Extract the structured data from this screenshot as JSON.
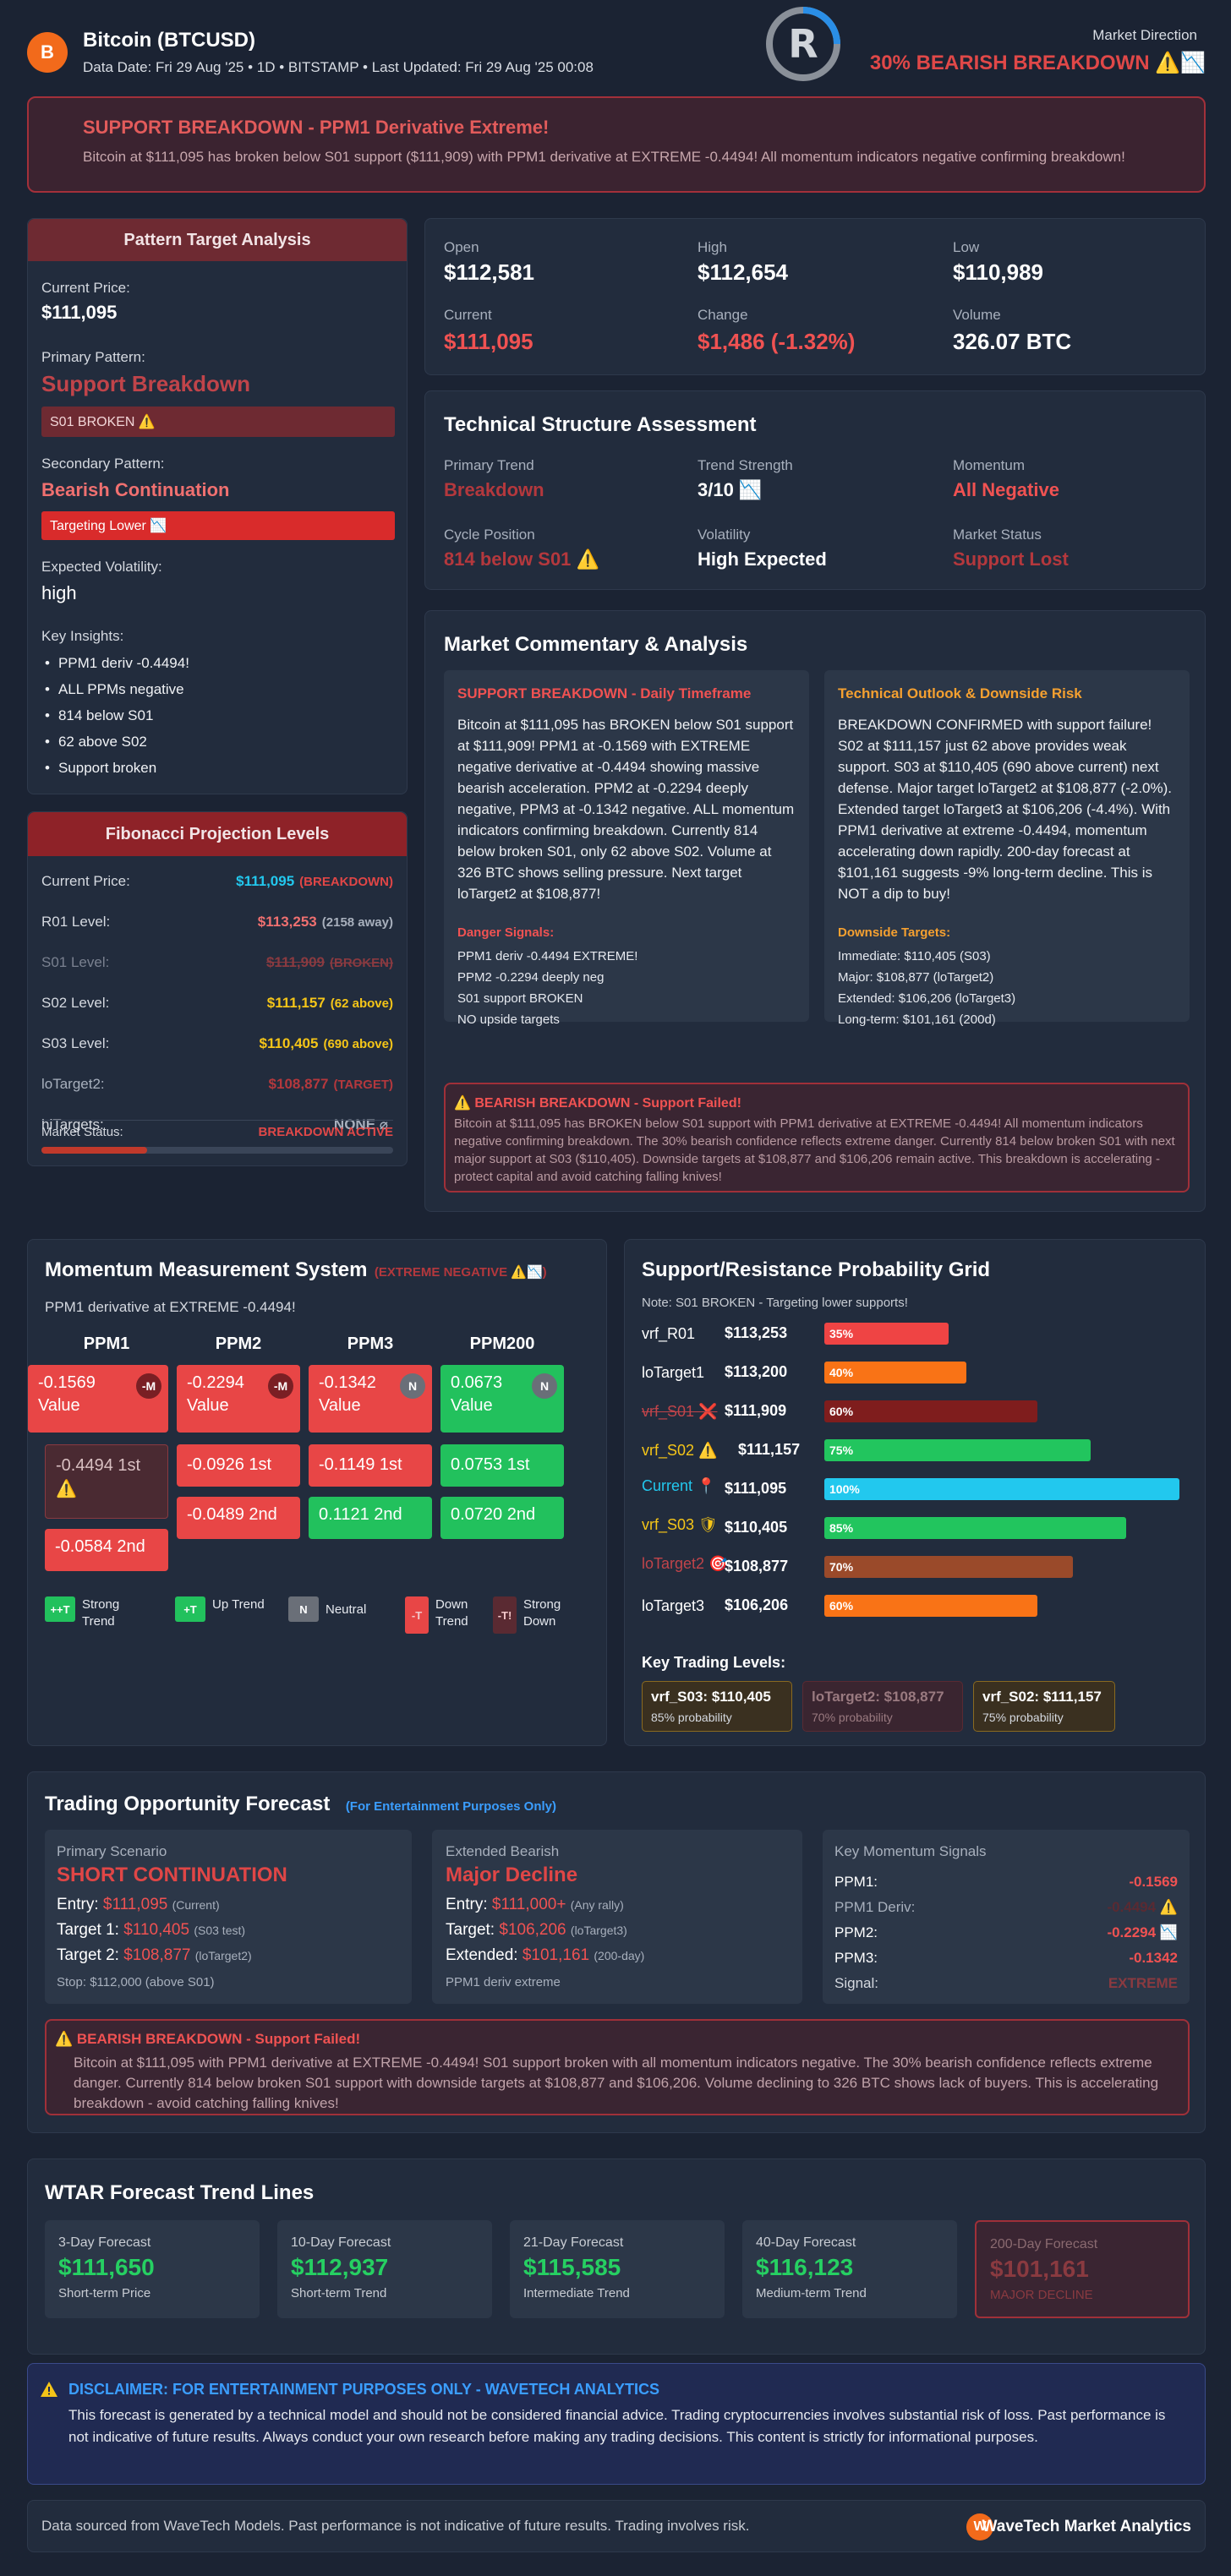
{
  "header": {
    "coin_letter": "B",
    "title": "Bitcoin (BTCUSD)",
    "subtitle": "Data Date: Fri 29 Aug '25 • 1D • BITSTAMP • Last Updated: Fri 29 Aug '25 00:08",
    "logo_letter": "R",
    "direction_label": "Market Direction",
    "direction_value": "30% BEARISH BREAKDOWN ⚠️📉"
  },
  "alert": {
    "title": "SUPPORT BREAKDOWN - PPM1 Derivative Extreme!",
    "body": "Bitcoin at $111,095 has broken below S01 support ($111,909) with PPM1 derivative at EXTREME -0.4494! All momentum indicators negative confirming breakdown!"
  },
  "pattern": {
    "title": "Pattern Target Analysis",
    "current_label": "Current Price:",
    "current_value": "$111,095",
    "primary_label": "Primary Pattern:",
    "primary_value": "Support Breakdown",
    "primary_badge": "S01 BROKEN ⚠️",
    "secondary_label": "Secondary Pattern:",
    "secondary_value": "Bearish Continuation",
    "secondary_badge": "Targeting Lower 📉",
    "vol_label": "Expected Volatility:",
    "vol_value": "high",
    "insights_label": "Key Insights:",
    "insights": [
      "PPM1 deriv -0.4494!",
      "ALL PPMs negative",
      "814 below S01",
      "62 above S02",
      "Support broken"
    ]
  },
  "fib": {
    "title": "Fibonacci Projection Levels",
    "rows": [
      {
        "label": "Current Price:",
        "value": "$111,095",
        "note": "(BREAKDOWN)"
      },
      {
        "label": "R01 Level:",
        "value": "$113,253",
        "note": "(2158 away)"
      },
      {
        "label": "S01 Level:",
        "value": "$111,909",
        "note": "(BROKEN)"
      },
      {
        "label": "S02 Level:",
        "value": "$111,157",
        "note": "(62 above)"
      },
      {
        "label": "S03 Level:",
        "value": "$110,405",
        "note": "(690 above)"
      },
      {
        "label": "loTarget2:",
        "value": "$108,877",
        "note": "(TARGET)"
      },
      {
        "label": "hiTargets:",
        "value": "NONE ⌀",
        "note": ""
      }
    ],
    "status_label": "Market Status:",
    "status_value": "BREAKDOWN ACTIVE",
    "status_progress": 0.3
  },
  "ohlc": {
    "open_label": "Open",
    "open": "$112,581",
    "high_label": "High",
    "high": "$112,654",
    "low_label": "Low",
    "low": "$110,989",
    "current_label": "Current",
    "current": "$111,095",
    "change_label": "Change",
    "change": "$1,486 (-1.32%)",
    "volume_label": "Volume",
    "volume": "326.07 BTC"
  },
  "tech": {
    "title": "Technical Structure Assessment",
    "trend_label": "Primary Trend",
    "trend": "Breakdown",
    "strength_label": "Trend Strength",
    "strength": "3/10 📉",
    "momentum_label": "Momentum",
    "momentum": "All Negative",
    "cycle_label": "Cycle Position",
    "cycle": "814 below S01 ⚠️",
    "volatility_label": "Volatility",
    "volatility": "High Expected",
    "status_label": "Market Status",
    "status": "Support Lost"
  },
  "commentary": {
    "title": "Market Commentary & Analysis",
    "left_title": "SUPPORT BREAKDOWN - Daily Timeframe",
    "left_body": "Bitcoin at $111,095 has BROKEN below S01 support at $111,909! PPM1 at -0.1569 with EXTREME negative derivative at -0.4494 showing massive bearish acceleration. PPM2 at -0.2294 deeply negative, PPM3 at -0.1342 negative. ALL momentum indicators confirming breakdown. Currently 814 below broken S01, only 62 above S02. Volume at 326 BTC shows selling pressure. Next target loTarget2 at $108,877!",
    "left_list_title": "Danger Signals:",
    "left_list": [
      "PPM1 deriv -0.4494 EXTREME!",
      "PPM2 -0.2294 deeply neg",
      "S01 support BROKEN",
      "NO upside targets"
    ],
    "right_title": "Technical Outlook & Downside Risk",
    "right_body": "BREAKDOWN CONFIRMED with support failure! S02 at $111,157 just 62 above provides weak support. S03 at $110,405 (690 above current) next defense. Major target loTarget2 at $108,877 (-2.0%). Extended target loTarget3 at $106,206 (-4.4%). With PPM1 derivative at extreme -0.4494, momentum accelerating down rapidly. 200-day forecast at $101,161 suggests -9% long-term decline. This is NOT a dip to buy!",
    "right_list_title": "Downside Targets:",
    "right_list": [
      "Immediate: $110,405 (S03)",
      "Major: $108,877 (loTarget2)",
      "Extended: $106,206 (loTarget3)",
      "Long-term: $101,161 (200d)"
    ],
    "warn_title": "⚠️ BEARISH BREAKDOWN - Support Failed!",
    "warn_body": "Bitcoin at $111,095 has BROKEN below S01 support with PPM1 derivative at EXTREME -0.4494! All momentum indicators negative confirming breakdown. The 30% bearish confidence reflects extreme danger. Currently 814 below broken S01 with next major support at S03 ($110,405). Downside targets at $108,877 and $106,206 remain active. This breakdown is accelerating - protect capital and avoid catching falling knives!"
  },
  "momentum": {
    "title": "Momentum Measurement System",
    "tag": "(EXTREME NEGATIVE ⚠️📉)",
    "subtitle": "PPM1 derivative at EXTREME -0.4494!",
    "columns": [
      {
        "name": "PPM1",
        "value": "-0.1569",
        "value_label": "Value",
        "badge": "-M",
        "first": "-0.4494 1st ⚠️",
        "second": "-0.0584 2nd"
      },
      {
        "name": "PPM2",
        "value": "-0.2294",
        "value_label": "Value",
        "badge": "-M",
        "first": "-0.0926 1st",
        "second": "-0.0489 2nd"
      },
      {
        "name": "PPM3",
        "value": "-0.1342",
        "value_label": "Value",
        "badge": "N",
        "first": "-0.1149 1st",
        "second": "0.1121 2nd"
      },
      {
        "name": "PPM200",
        "value": "0.0673",
        "value_label": "Value",
        "badge": "N",
        "first": "0.0753 1st",
        "second": "0.0720 2nd"
      }
    ],
    "legend": [
      {
        "chip": "++T",
        "label": "Strong Trend"
      },
      {
        "chip": "+T",
        "label": "Up Trend"
      },
      {
        "chip": "N",
        "label": "Neutral"
      },
      {
        "chip": "-T",
        "label": "Down Trend"
      },
      {
        "chip": "-T!",
        "label": "Strong Down"
      }
    ]
  },
  "prob": {
    "title": "Support/Resistance Probability Grid",
    "note": "Note: S01 BROKEN - Targeting lower supports!",
    "rows": [
      {
        "name": "vrf_R01",
        "value": "$113,253",
        "pct": "35%",
        "p": 0.35,
        "color": "#ef4444"
      },
      {
        "name": "loTarget1",
        "value": "$113,200",
        "pct": "40%",
        "p": 0.4,
        "color": "#f97316"
      },
      {
        "name": "vrf_S01 ❌",
        "value": "$111,909",
        "pct": "60%",
        "p": 0.6,
        "color": "#7f1d1d"
      },
      {
        "name": "vrf_S02 ⚠️",
        "value": "$111,157",
        "pct": "75%",
        "p": 0.75,
        "color": "#22c55e"
      },
      {
        "name": "Current 📍",
        "value": "$111,095",
        "pct": "100%",
        "p": 1.0,
        "color": "#22c8ee"
      },
      {
        "name": "vrf_S03 🛡",
        "value": "$110,405",
        "pct": "85%",
        "p": 0.85,
        "color": "#22c55e"
      },
      {
        "name": "loTarget2 🎯",
        "value": "$108,877",
        "pct": "70%",
        "p": 0.7,
        "color": "#9a4a2a"
      },
      {
        "name": "loTarget3",
        "value": "$106,206",
        "pct": "60%",
        "p": 0.6,
        "color": "#f97316"
      }
    ],
    "key_title": "Key Trading Levels:",
    "key_levels": [
      {
        "label": "vrf_S03: $110,405",
        "sub": "85% probability"
      },
      {
        "label": "loTarget2: $108,877",
        "sub": "70% probability"
      },
      {
        "label": "vrf_S02: $111,157",
        "sub": "75% probability"
      }
    ]
  },
  "trading": {
    "title": "Trading Opportunity Forecast",
    "tag": "(For Entertainment Purposes Only)",
    "primary": {
      "label": "Primary Scenario",
      "title": "SHORT CONTINUATION",
      "entry_label": "Entry:",
      "entry": "$111,095",
      "entry_note": "(Current)",
      "t1_label": "Target 1:",
      "t1": "$110,405",
      "t1_note": "(S03 test)",
      "t2_label": "Target 2:",
      "t2": "$108,877",
      "t2_note": "(loTarget2)",
      "stop": "Stop: $112,000 (above S01)"
    },
    "extended": {
      "label": "Extended Bearish",
      "title": "Major Decline",
      "entry_label": "Entry:",
      "entry": "$111,000+",
      "entry_note": "(Any rally)",
      "t_label": "Target:",
      "t": "$106,206",
      "t_note": "(loTarget3)",
      "ext_label": "Extended:",
      "ext": "$101,161",
      "ext_note": "(200-day)",
      "note": "PPM1 deriv extreme"
    },
    "signals": {
      "label": "Key Momentum Signals",
      "rows": [
        {
          "k": "PPM1:",
          "v": "-0.1569"
        },
        {
          "k": "PPM1 Deriv:",
          "v": "-0.4494 ⚠️"
        },
        {
          "k": "PPM2:",
          "v": "-0.2294 📉"
        },
        {
          "k": "PPM3:",
          "v": "-0.1342"
        },
        {
          "k": "Signal:",
          "v": "EXTREME"
        }
      ]
    },
    "warn_title": "⚠️ BEARISH BREAKDOWN - Support Failed!",
    "warn_body": "Bitcoin at $111,095 with PPM1 derivative at EXTREME -0.4494! S01 support broken with all momentum indicators negative. The 30% bearish confidence reflects extreme danger. Currently 814 below broken S01 support with downside targets at $108,877 and $106,206. Volume declining to 326 BTC shows lack of buyers. This is accelerating breakdown - avoid catching falling knives!"
  },
  "wtar": {
    "title": "WTAR Forecast Trend Lines",
    "items": [
      {
        "label": "3-Day Forecast",
        "value": "$111,650",
        "sub": "Short-term Price"
      },
      {
        "label": "10-Day Forecast",
        "value": "$112,937",
        "sub": "Short-term Trend"
      },
      {
        "label": "21-Day Forecast",
        "value": "$115,585",
        "sub": "Intermediate Trend"
      },
      {
        "label": "40-Day Forecast",
        "value": "$116,123",
        "sub": "Medium-term Trend"
      },
      {
        "label": "200-Day Forecast",
        "value": "$101,161",
        "sub": "MAJOR DECLINE"
      }
    ]
  },
  "disclaimer": {
    "title": "DISCLAIMER: FOR ENTERTAINMENT PURPOSES ONLY - WAVETECH ANALYTICS",
    "body": "This forecast is generated by a technical model and should not be considered financial advice. Trading cryptocurrencies involves substantial risk of loss. Past performance is not indicative of future results. Always conduct your own research before making any trading decisions. This content is strictly for informational purposes."
  },
  "footer": {
    "text": "Data sourced from WaveTech Models. Past performance is not indicative of future results. Trading involves risk.",
    "brand_letter": "W",
    "brand": "WaveTech Market Analytics"
  }
}
